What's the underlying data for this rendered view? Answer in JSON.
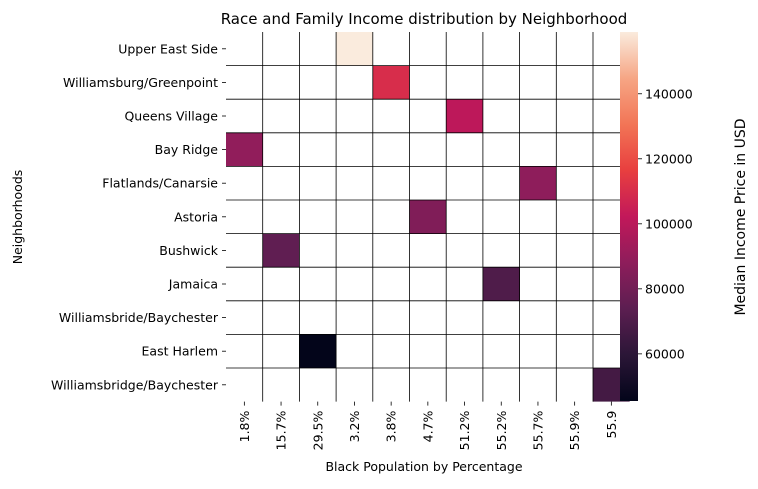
{
  "chart_data": {
    "type": "heatmap",
    "title": "Race and Family Income distribution by Neighborhood",
    "xlabel": "Black Population by Percentage",
    "ylabel": "Neighborhoods",
    "x_categories": [
      "1.8%",
      "15.7%",
      "29.5%",
      "3.2%",
      "3.8%",
      "4.7%",
      "51.2%",
      "55.2%",
      "55.7%",
      "55.9%",
      "55.9"
    ],
    "y_categories": [
      "Upper East Side",
      "Williamsburg/Greenpoint",
      "Queens Village",
      "Bay Ridge",
      "Flatlands/Canarsie",
      "Astoria",
      "Bushwick",
      "Jamaica",
      "Williamsbride/Baychester",
      "East Harlem",
      "Williamsbridge/Baychester"
    ],
    "cells": [
      {
        "row": "Upper East Side",
        "col": "3.2%",
        "value": 159000
      },
      {
        "row": "Williamsburg/Greenpoint",
        "col": "3.8%",
        "value": 110000
      },
      {
        "row": "Queens Village",
        "col": "51.2%",
        "value": 101000
      },
      {
        "row": "Bay Ridge",
        "col": "1.8%",
        "value": 89000
      },
      {
        "row": "Flatlands/Canarsie",
        "col": "55.7%",
        "value": 88000
      },
      {
        "row": "Astoria",
        "col": "4.7%",
        "value": 84000
      },
      {
        "row": "Bushwick",
        "col": "15.7%",
        "value": 75000
      },
      {
        "row": "Jamaica",
        "col": "55.2%",
        "value": 70000
      },
      {
        "row": "East Harlem",
        "col": "29.5%",
        "value": 45500
      },
      {
        "row": "Williamsbridge/Baychester",
        "col": "55.9",
        "value": 67000
      }
    ],
    "colorbar": {
      "label": "Median Income Price in USD",
      "min": 45500,
      "max": 159000,
      "ticks": [
        60000,
        80000,
        100000,
        120000,
        140000
      ],
      "tick_labels": [
        "60000",
        "80000",
        "100000",
        "120000",
        "140000"
      ],
      "colormap": "rocket"
    },
    "empty_cell_color": "#ffffff",
    "grid_color": "#000000"
  }
}
